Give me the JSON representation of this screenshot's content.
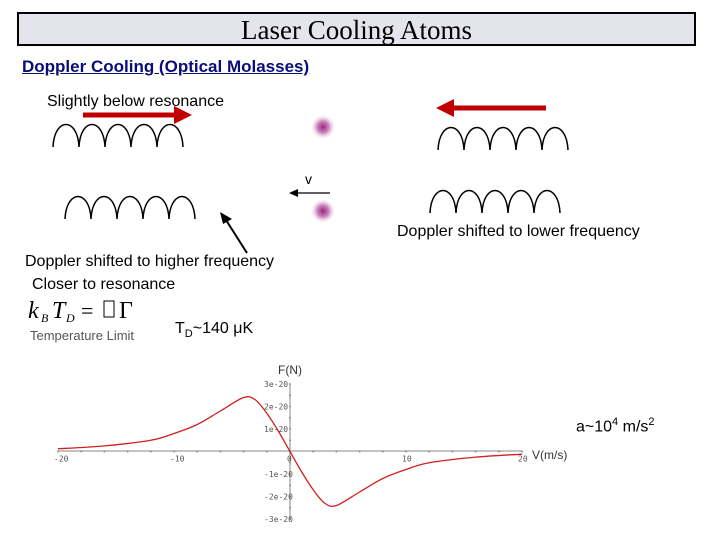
{
  "title": "Laser Cooling Atoms",
  "heading": "Doppler Cooling (Optical Molasses)",
  "labels": {
    "below_resonance": "Slightly below resonance",
    "velocity": "v",
    "lower_freq": "Doppler shifted to lower frequency",
    "higher_freq": "Doppler shifted to higher frequency",
    "closer": "Closer to resonance",
    "formula": "k_B T_D = ħΓ",
    "temp_limit": "Temperature Limit",
    "td_prefix": "T",
    "td_sub": "D",
    "td_value": "~140 μK",
    "accel_prefix": "a~10",
    "accel_exp": "4",
    "accel_unit": " m/s",
    "accel_sq": "2"
  },
  "colors": {
    "arrow": "#c00000",
    "curve": "#d02020",
    "atom": "#a02080",
    "title_bg": "#e4e4ec",
    "heading": "#0b0b7a"
  },
  "icons": {
    "formula": "kB-TD-equals-hbar-gamma-formula"
  },
  "chart_data": {
    "type": "line",
    "xlabel": "V(m/s)",
    "ylabel": "F(N)",
    "xlim": [
      -20,
      20
    ],
    "ylim": [
      -3e-20,
      3e-20
    ],
    "x_ticks": [
      {
        "value": -20,
        "label": "-20"
      },
      {
        "value": -10,
        "label": "-10"
      },
      {
        "value": 0,
        "label": "0"
      },
      {
        "value": 10,
        "label": "10"
      },
      {
        "value": 20,
        "label": "20"
      }
    ],
    "y_ticks": [
      {
        "value": 3e-20,
        "label": "3e-20"
      },
      {
        "value": 2e-20,
        "label": "2e-20"
      },
      {
        "value": 1e-20,
        "label": "1e-20"
      },
      {
        "value": 0,
        "label": "0"
      },
      {
        "value": -1e-20,
        "label": "-1e-20"
      },
      {
        "value": -2e-20,
        "label": "-2e-20"
      },
      {
        "value": -3e-20,
        "label": "-3e-20"
      }
    ],
    "x": [
      -20,
      -16,
      -12,
      -10,
      -8,
      -6,
      -4,
      -3,
      -2,
      -1,
      0,
      1,
      2,
      3,
      4,
      6,
      8,
      10,
      12,
      16,
      20
    ],
    "y": [
      1.2e-21,
      2.5e-21,
      5e-21,
      8e-21,
      1.2e-20,
      1.8e-20,
      2.4e-20,
      2.3e-20,
      1.7e-20,
      9e-21,
      0,
      -9e-21,
      -1.7e-20,
      -2.3e-20,
      -2.4e-20,
      -1.8e-20,
      -1.2e-20,
      -8e-21,
      -5e-21,
      -2.5e-21,
      -1.2e-21
    ]
  }
}
